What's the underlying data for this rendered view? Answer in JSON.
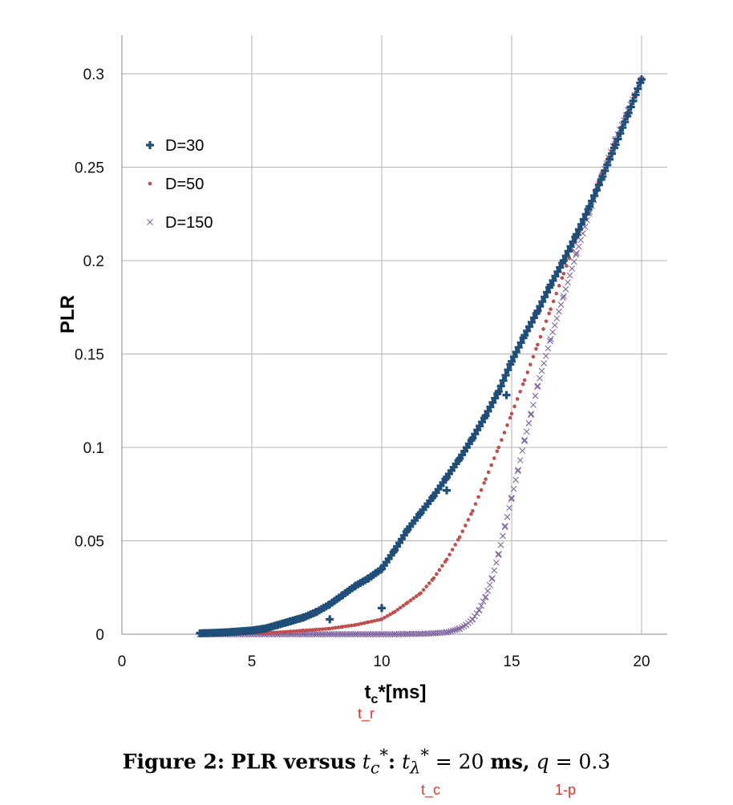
{
  "chart_data": {
    "type": "scatter",
    "ylabel": "PLR",
    "xlabel_main": "t",
    "xlabel_sub": "c",
    "xlabel_rest": "*[ms]",
    "xlim": [
      0,
      20
    ],
    "ylim": [
      0,
      0.3
    ],
    "x_ticks": [
      "0",
      "5",
      "10",
      "15",
      "20"
    ],
    "y_ticks": [
      "0",
      "0.05",
      "0.1",
      "0.15",
      "0.2",
      "0.25",
      "0.3"
    ],
    "grid": true,
    "legend_position": "top-left",
    "series": [
      {
        "name": "D=30",
        "marker": "plus",
        "color": "#1f4e79",
        "x": [
          3.0,
          3.5,
          4.0,
          4.5,
          5.0,
          5.5,
          6.0,
          6.5,
          7.0,
          7.5,
          8.0,
          8.5,
          9.0,
          9.5,
          10.0,
          10.5,
          11.0,
          11.5,
          12.0,
          12.5,
          13.0,
          13.5,
          14.0,
          14.5,
          15.0,
          15.5,
          16.0,
          16.5,
          17.0,
          17.5,
          18.0,
          18.5,
          19.0,
          19.5,
          20.0
        ],
        "y": [
          0.0005,
          0.0007,
          0.001,
          0.0015,
          0.002,
          0.003,
          0.005,
          0.007,
          0.009,
          0.012,
          0.016,
          0.021,
          0.026,
          0.03,
          0.035,
          0.045,
          0.056,
          0.065,
          0.074,
          0.084,
          0.094,
          0.105,
          0.117,
          0.13,
          0.146,
          0.16,
          0.173,
          0.187,
          0.2,
          0.214,
          0.229,
          0.245,
          0.262,
          0.279,
          0.297
        ],
        "outliers_x": [
          8.0,
          10.0,
          12.5,
          14.8
        ],
        "outliers_y": [
          0.008,
          0.014,
          0.077,
          0.128
        ]
      },
      {
        "name": "D=50",
        "marker": "dot",
        "color": "#c0504d",
        "x": [
          3.0,
          3.5,
          4.0,
          4.5,
          5.0,
          5.5,
          6.0,
          6.5,
          7.0,
          7.5,
          8.0,
          8.5,
          9.0,
          9.5,
          10.0,
          10.5,
          11.0,
          11.5,
          12.0,
          12.5,
          13.0,
          13.5,
          14.0,
          14.5,
          15.0,
          15.5,
          16.0,
          16.5,
          17.0,
          17.5,
          18.0,
          18.5,
          19.0,
          19.5,
          20.0
        ],
        "y": [
          0.0001,
          0.0001,
          0.0002,
          0.0003,
          0.0005,
          0.0007,
          0.001,
          0.0015,
          0.002,
          0.0025,
          0.003,
          0.004,
          0.005,
          0.0065,
          0.008,
          0.012,
          0.017,
          0.022,
          0.03,
          0.04,
          0.052,
          0.066,
          0.083,
          0.1,
          0.118,
          0.136,
          0.155,
          0.174,
          0.193,
          0.212,
          0.23,
          0.248,
          0.264,
          0.28,
          0.297
        ]
      },
      {
        "name": "D=150",
        "marker": "x",
        "color": "#8064a2",
        "x": [
          3.0,
          3.5,
          4.0,
          4.5,
          5.0,
          5.5,
          6.0,
          6.5,
          7.0,
          7.5,
          8.0,
          8.5,
          9.0,
          9.5,
          10.0,
          10.5,
          11.0,
          11.5,
          12.0,
          12.5,
          13.0,
          13.25,
          13.5,
          13.75,
          14.0,
          14.25,
          14.5,
          14.75,
          15.0,
          15.25,
          15.5,
          15.75,
          16.0,
          16.5,
          17.0,
          17.5,
          18.0,
          18.5,
          19.0,
          19.5,
          20.0
        ],
        "y": [
          0,
          0,
          0,
          0,
          0,
          0,
          0,
          0,
          0,
          0,
          0,
          0,
          0,
          0,
          0,
          0,
          0.0001,
          0.0002,
          0.0005,
          0.001,
          0.003,
          0.005,
          0.008,
          0.013,
          0.02,
          0.03,
          0.043,
          0.058,
          0.073,
          0.088,
          0.104,
          0.118,
          0.133,
          0.158,
          0.181,
          0.204,
          0.226,
          0.246,
          0.265,
          0.281,
          0.297
        ]
      }
    ]
  },
  "annotations": {
    "under_xlabel": "t_r",
    "under_caption_1": "t_c",
    "under_caption_2": "1-p"
  },
  "caption": {
    "label": "Figure 2:",
    "text_1": "PLR versus",
    "var_1": "t",
    "var_1_sub": "c",
    "var_1_sup": "*",
    "colon": ":",
    "var_2": "t",
    "var_2_sub": "λ",
    "var_2_sup": "*",
    "eq_1": "= 20",
    "unit": "ms,",
    "var_3": "q",
    "eq_2": "= 0.3"
  }
}
